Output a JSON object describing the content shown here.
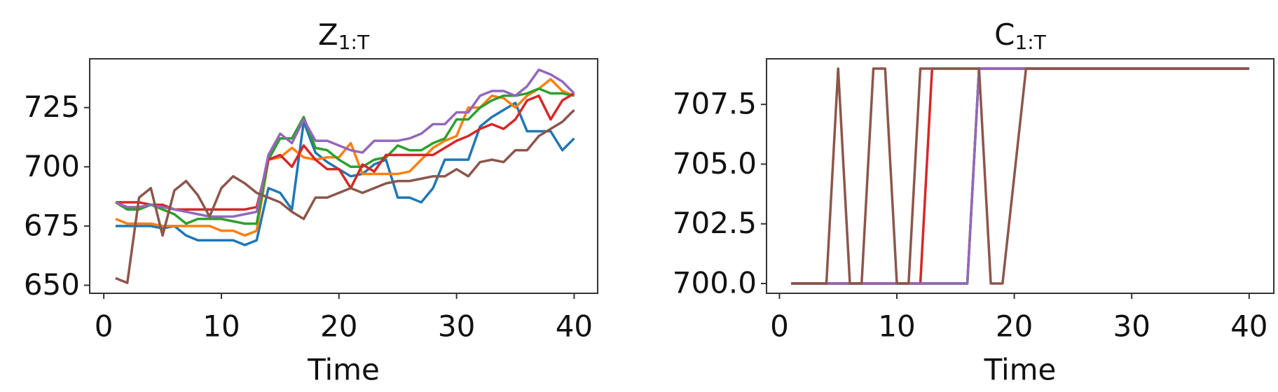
{
  "chart_data": [
    {
      "type": "line",
      "title": "Z",
      "title_sub": "1:T",
      "xlabel": "Time",
      "x": [
        1,
        2,
        3,
        4,
        5,
        6,
        7,
        8,
        9,
        10,
        11,
        12,
        13,
        14,
        15,
        16,
        17,
        18,
        19,
        20,
        21,
        22,
        23,
        24,
        25,
        26,
        27,
        28,
        29,
        30,
        31,
        32,
        33,
        34,
        35,
        36,
        37,
        38,
        39,
        40
      ],
      "xlim": [
        -1.2,
        42.0
      ],
      "ylim": [
        646.6,
        745.6
      ],
      "xticks": [
        0,
        10,
        20,
        30,
        40
      ],
      "yticks": [
        650,
        675,
        700,
        725
      ],
      "series": [
        {
          "color": "#1f77b4",
          "values": [
            675,
            675,
            675,
            675,
            674,
            675,
            671,
            669,
            669,
            669,
            669,
            667,
            669,
            691,
            689,
            682,
            719,
            706,
            702,
            699,
            696,
            697,
            701,
            703,
            687,
            687,
            685,
            691,
            703,
            703,
            703,
            717,
            721,
            724,
            727,
            715,
            715,
            715,
            707,
            712
          ]
        },
        {
          "color": "#ff7f0e",
          "values": [
            678,
            676,
            676,
            676,
            675,
            675,
            675,
            675,
            675,
            673,
            673,
            671,
            673,
            703,
            704,
            708,
            704,
            703,
            704,
            704,
            710,
            697,
            697,
            697,
            697,
            698,
            703,
            708,
            711,
            713,
            725,
            725,
            730,
            729,
            725,
            730,
            733,
            737,
            732,
            730
          ]
        },
        {
          "color": "#2ca02c",
          "values": [
            685,
            682,
            682,
            684,
            682,
            680,
            676,
            678,
            678,
            678,
            677,
            676,
            676,
            703,
            712,
            712,
            721,
            708,
            707,
            703,
            700,
            700,
            703,
            704,
            709,
            707,
            707,
            710,
            712,
            720,
            720,
            725,
            728,
            730,
            730,
            731,
            733,
            731,
            731,
            730
          ]
        },
        {
          "color": "#d62728",
          "values": [
            685,
            685,
            685,
            684,
            684,
            682,
            682,
            682,
            682,
            682,
            682,
            682,
            683,
            703,
            705,
            700,
            709,
            703,
            699,
            699,
            691,
            701,
            698,
            705,
            705,
            705,
            705,
            705,
            708,
            711,
            713,
            716,
            718,
            716,
            720,
            728,
            730,
            720,
            728,
            731
          ]
        },
        {
          "color": "#9467bd",
          "values": [
            685,
            683,
            683,
            684,
            683,
            682,
            681,
            680,
            679,
            679,
            679,
            680,
            681,
            705,
            714,
            710,
            720,
            711,
            711,
            709,
            707,
            706,
            711,
            711,
            711,
            712,
            714,
            718,
            718,
            723,
            723,
            730,
            732,
            732,
            730,
            734,
            741,
            739,
            736,
            731
          ]
        },
        {
          "color": "#8c564b",
          "values": [
            653,
            651,
            687,
            691,
            671,
            690,
            694,
            688,
            679,
            691,
            696,
            693,
            689,
            687,
            685,
            681,
            678,
            687,
            687,
            689,
            691,
            689,
            691,
            693,
            694,
            694,
            695,
            696,
            696,
            699,
            696,
            702,
            703,
            702,
            707,
            707,
            713,
            716,
            719,
            724
          ]
        }
      ]
    },
    {
      "type": "line",
      "title": "C",
      "title_sub": "1:T",
      "xlabel": "Time",
      "x": [
        1,
        2,
        3,
        4,
        5,
        6,
        7,
        8,
        9,
        10,
        11,
        12,
        13,
        14,
        15,
        16,
        17,
        18,
        19,
        20,
        21,
        22,
        23,
        24,
        25,
        26,
        27,
        28,
        29,
        30,
        31,
        32,
        33,
        34,
        35,
        36,
        37,
        38,
        39,
        40
      ],
      "xlim": [
        -1.1,
        42.1
      ],
      "ylim": [
        699.59,
        709.41
      ],
      "xticks": [
        0,
        10,
        20,
        30,
        40
      ],
      "yticks": [
        {
          "value": 700,
          "label": "700.0"
        },
        702.5,
        {
          "value": 705,
          "label": "705.0"
        },
        707.5
      ],
      "series": [
        {
          "color": "#1f77b4",
          "values": [
            700,
            700,
            700,
            700,
            700,
            700,
            700,
            700,
            700,
            700,
            700,
            700,
            700,
            700,
            700,
            700,
            709,
            709,
            709,
            709,
            709,
            709,
            709,
            709,
            709,
            709,
            709,
            709,
            709,
            709,
            709,
            709,
            709,
            709,
            709,
            709,
            709,
            709,
            709,
            709
          ]
        },
        {
          "color": "#ff7f0e",
          "values": [
            700,
            700,
            700,
            700,
            700,
            700,
            700,
            700,
            700,
            700,
            700,
            700,
            700,
            700,
            700,
            700,
            709,
            709,
            709,
            709,
            709,
            709,
            709,
            709,
            709,
            709,
            709,
            709,
            709,
            709,
            709,
            709,
            709,
            709,
            709,
            709,
            709,
            709,
            709,
            709
          ]
        },
        {
          "color": "#2ca02c",
          "values": [
            700,
            700,
            700,
            700,
            700,
            700,
            700,
            700,
            700,
            700,
            700,
            700,
            700,
            700,
            700,
            700,
            709,
            709,
            709,
            709,
            709,
            709,
            709,
            709,
            709,
            709,
            709,
            709,
            709,
            709,
            709,
            709,
            709,
            709,
            709,
            709,
            709,
            709,
            709,
            709
          ]
        },
        {
          "color": "#d62728",
          "values": [
            700,
            700,
            700,
            700,
            700,
            700,
            700,
            700,
            700,
            700,
            700,
            700,
            709,
            709,
            709,
            709,
            709,
            709,
            709,
            709,
            709,
            709,
            709,
            709,
            709,
            709,
            709,
            709,
            709,
            709,
            709,
            709,
            709,
            709,
            709,
            709,
            709,
            709,
            709,
            709
          ]
        },
        {
          "color": "#9467bd",
          "values": [
            700,
            700,
            700,
            700,
            700,
            700,
            700,
            700,
            700,
            700,
            700,
            700,
            700,
            700,
            700,
            700,
            709,
            709,
            709,
            709,
            709,
            709,
            709,
            709,
            709,
            709,
            709,
            709,
            709,
            709,
            709,
            709,
            709,
            709,
            709,
            709,
            709,
            709,
            709,
            709
          ]
        },
        {
          "color": "#8c564b",
          "values": [
            700,
            700,
            700,
            700,
            709,
            700,
            700,
            709,
            709,
            700,
            700,
            709,
            709,
            709,
            709,
            709,
            709,
            700,
            700,
            704.5,
            709,
            709,
            709,
            709,
            709,
            709,
            709,
            709,
            709,
            709,
            709,
            709,
            709,
            709,
            709,
            709,
            709,
            709,
            709,
            709
          ]
        }
      ]
    }
  ]
}
